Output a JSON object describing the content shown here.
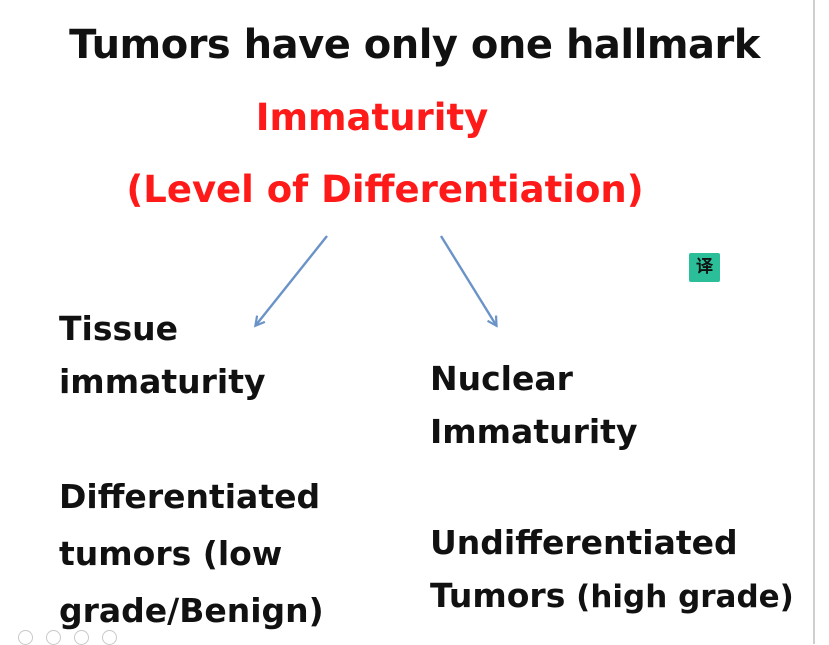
{
  "slide": {
    "title": "Tumors have only one hallmark",
    "subtitle_line1": "Immaturity",
    "subtitle_line2": "(Level of Differentiation)",
    "left": {
      "heading_line1": "Tissue",
      "heading_line2": "immaturity",
      "body_line1": "Differentiated",
      "body_line2": "tumors (low",
      "body_line3": "grade/Benign)"
    },
    "right": {
      "heading_line1": "Nuclear",
      "heading_line2": "Immaturity",
      "body_line1": "Undifferentiated",
      "body_line2a": "Tumors",
      "body_line2b": " (high grade)"
    }
  },
  "overlay": {
    "translate_badge": "译"
  },
  "colors": {
    "title": "#111111",
    "accent_red": "#ff1a1a",
    "arrow_blue": "#6a93c8",
    "badge_green": "#2bbf99"
  },
  "icons": [
    "arrow-down-left-icon",
    "arrow-down-right-icon",
    "pen-icon",
    "highlighter-icon",
    "search-icon",
    "more-icon"
  ]
}
